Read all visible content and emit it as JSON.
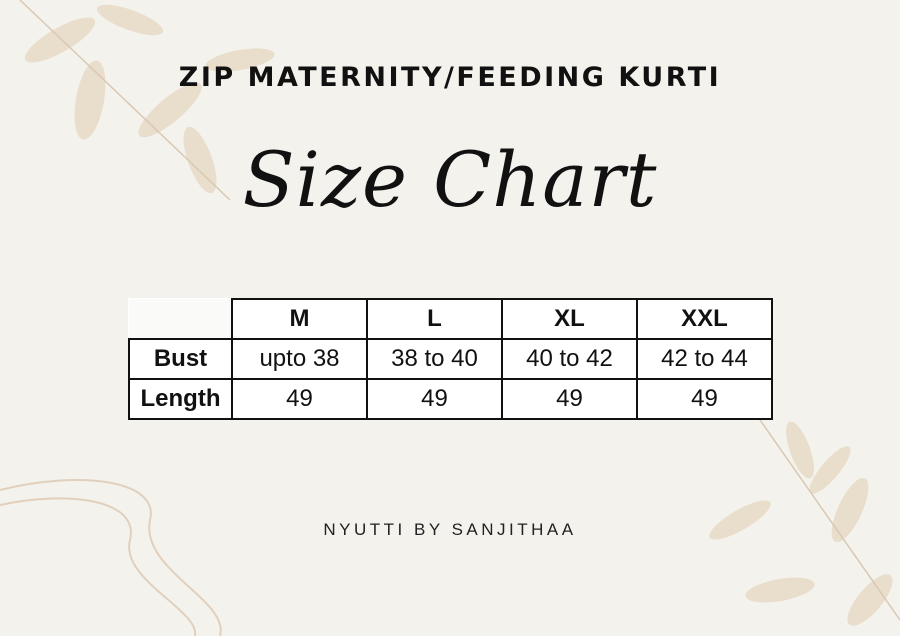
{
  "header": {
    "title": "ZIP MATERNITY/FEEDING KURTI",
    "subtitle": "Size Chart"
  },
  "table": {
    "columns": [
      "M",
      "L",
      "XL",
      "XXL"
    ],
    "rows": [
      {
        "label": "Bust",
        "values": [
          "upto 38",
          "38 to 40",
          "40 to 42",
          "42 to 44"
        ]
      },
      {
        "label": "Length",
        "values": [
          "49",
          "49",
          "49",
          "49"
        ]
      }
    ]
  },
  "footer": {
    "brand": "NYUTTI BY SANJITHAA"
  },
  "colors": {
    "background": "#f4f2ed",
    "leaf": "#e3d3bc",
    "text": "#111111"
  }
}
